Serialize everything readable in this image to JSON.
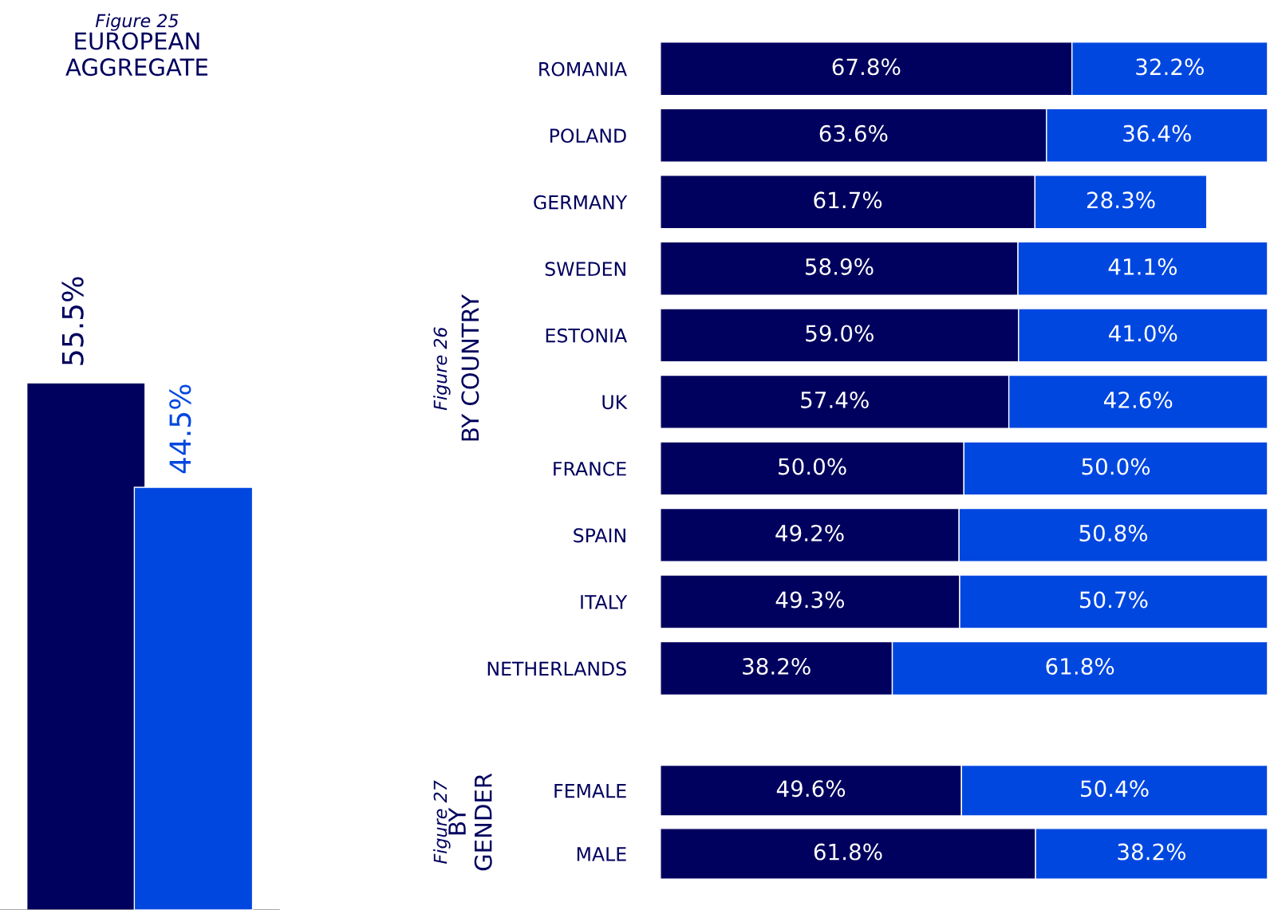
{
  "chart_data": [
    {
      "type": "bar",
      "title": "EUROPEAN\nAGGREGATE",
      "subtitle": "Figure 25",
      "categories": [
        null,
        null
      ],
      "values": [
        55.5,
        44.5
      ],
      "colors": [
        "#00005e",
        "#0047e0"
      ],
      "value_labels": [
        "55.5%",
        "44.5%"
      ]
    },
    {
      "type": "bar",
      "orientation": "horizontal",
      "stacked": true,
      "title": "BY COUNTRY",
      "subtitle": "Figure 26",
      "categories": [
        "ROMANIA",
        "POLAND",
        "GERMANY",
        "SWEDEN",
        "ESTONIA",
        "UK",
        "FRANCE",
        "SPAIN",
        "ITALY",
        "NETHERLANDS"
      ],
      "series": [
        {
          "color": "#00005e",
          "values": [
            67.8,
            63.6,
            61.7,
            58.9,
            59.0,
            57.4,
            50.0,
            49.2,
            49.3,
            38.2
          ],
          "value_labels": [
            "67.8%",
            "63.6%",
            "61.7%",
            "58.9%",
            "59.0%",
            "57.4%",
            "50.0%",
            "49.2%",
            "49.3%",
            "38.2%"
          ]
        },
        {
          "color": "#0047e0",
          "values": [
            32.2,
            36.4,
            28.3,
            41.1,
            41.0,
            42.6,
            50.0,
            50.8,
            50.7,
            61.8
          ],
          "value_labels": [
            "32.2%",
            "36.4%",
            "28.3%",
            "41.1%",
            "41.0%",
            "42.6%",
            "50.0%",
            "50.8%",
            "50.7%",
            "61.8%"
          ]
        }
      ]
    },
    {
      "type": "bar",
      "orientation": "horizontal",
      "stacked": true,
      "title": "BY\nGENDER",
      "subtitle": "Figure 27",
      "categories": [
        "FEMALE",
        "MALE"
      ],
      "series": [
        {
          "color": "#00005e",
          "values": [
            49.6,
            61.8
          ],
          "value_labels": [
            "49.6%",
            "61.8%"
          ]
        },
        {
          "color": "#0047e0",
          "values": [
            50.4,
            38.2
          ],
          "value_labels": [
            "50.4%",
            "38.2%"
          ]
        }
      ]
    }
  ]
}
